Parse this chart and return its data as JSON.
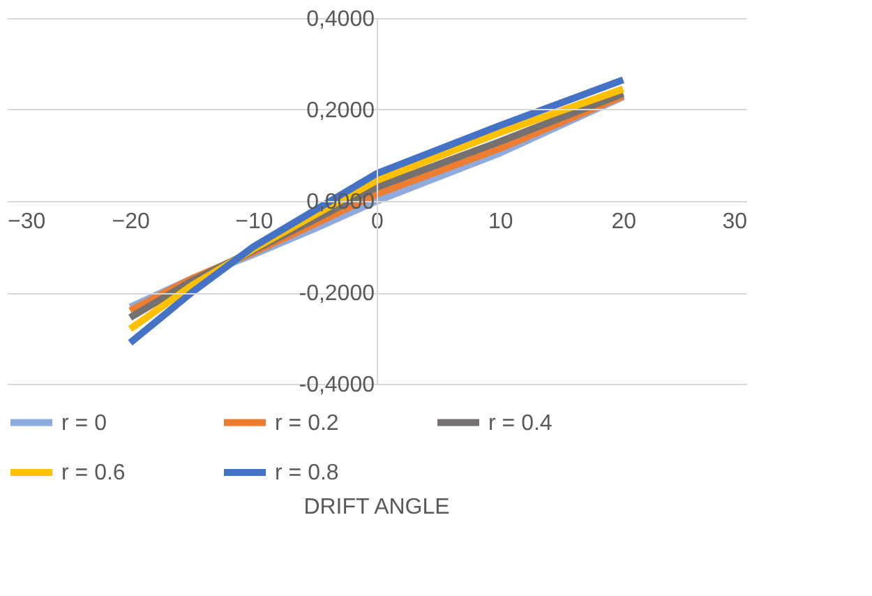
{
  "chart_data": {
    "type": "line",
    "xlabel": "DRIFT ANGLE",
    "x": [
      -20,
      -15,
      -10,
      -5,
      0,
      10,
      20
    ],
    "xlim": [
      -30,
      30
    ],
    "xticks": [
      -30,
      -20,
      -10,
      0,
      10,
      20,
      30
    ],
    "ylim": [
      -0.4,
      0.4
    ],
    "yticks": [
      {
        "value": -0.4,
        "label": "-0,4000"
      },
      {
        "value": -0.2,
        "label": "-0,2000"
      },
      {
        "value": 0,
        "label": "0,0000"
      },
      {
        "value": 0.2,
        "label": "0,2000"
      },
      {
        "value": 0.4,
        "label": "0,4000"
      }
    ],
    "grid": "y",
    "legend": "bottom",
    "marker": "none",
    "line_style": "solid",
    "series": [
      {
        "name": "r = 0",
        "color": "#8faadc",
        "values": [
          -0.232,
          -0.17,
          -0.117,
          -0.06,
          0.0,
          0.105,
          0.228
        ]
      },
      {
        "name": "r = 0.2",
        "color": "#ed7d31",
        "values": [
          -0.24,
          -0.17,
          -0.112,
          -0.05,
          0.015,
          0.115,
          0.23
        ]
      },
      {
        "name": "r = 0.4",
        "color": "#767171",
        "values": [
          -0.255,
          -0.175,
          -0.108,
          -0.04,
          0.03,
          0.13,
          0.235
        ]
      },
      {
        "name": "r = 0.6",
        "color": "#ffc000",
        "values": [
          -0.28,
          -0.185,
          -0.105,
          -0.03,
          0.045,
          0.15,
          0.245
        ]
      },
      {
        "name": "r = 0.8",
        "color": "#4472c4",
        "values": [
          -0.31,
          -0.2,
          -0.1,
          -0.02,
          0.06,
          0.165,
          0.265
        ]
      }
    ]
  }
}
